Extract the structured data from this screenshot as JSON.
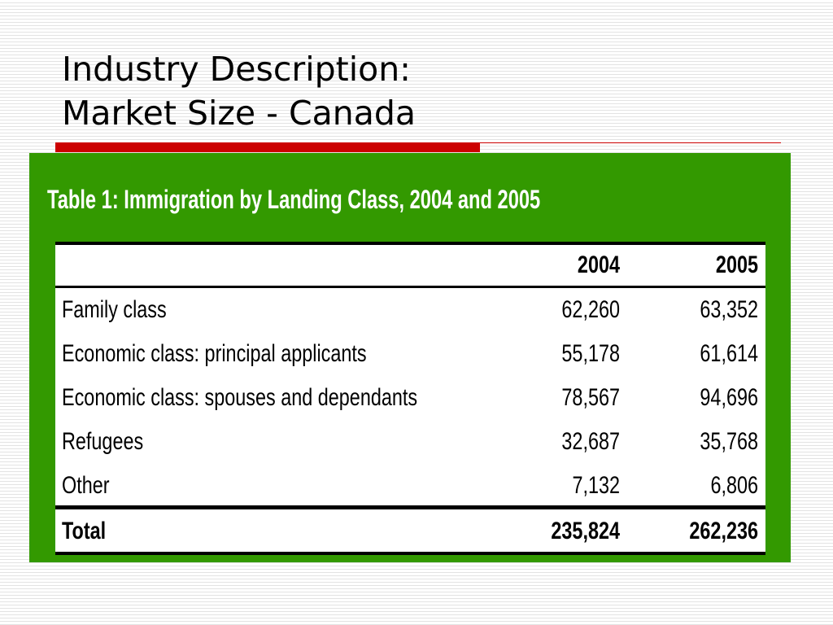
{
  "slide": {
    "title_line1": "Industry Description:",
    "title_line2": "Market Size - Canada"
  },
  "colors": {
    "panel_green": "#339900",
    "accent_red": "#cc0000"
  },
  "table": {
    "caption": "Table 1: Immigration by Landing Class, 2004 and 2005",
    "columns": [
      "",
      "2004",
      "2005"
    ],
    "rows": [
      {
        "label": "Family class",
        "y2004": "62,260",
        "y2005": "63,352"
      },
      {
        "label": "Economic class: principal applicants",
        "y2004": "55,178",
        "y2005": "61,614"
      },
      {
        "label": "Economic class: spouses and dependants",
        "y2004": "78,567",
        "y2005": "94,696"
      },
      {
        "label": "Refugees",
        "y2004": "32,687",
        "y2005": "35,768"
      },
      {
        "label": "Other",
        "y2004": "7,132",
        "y2005": "6,806"
      }
    ],
    "total": {
      "label": "Total",
      "y2004": "235,824",
      "y2005": "262,236"
    }
  }
}
